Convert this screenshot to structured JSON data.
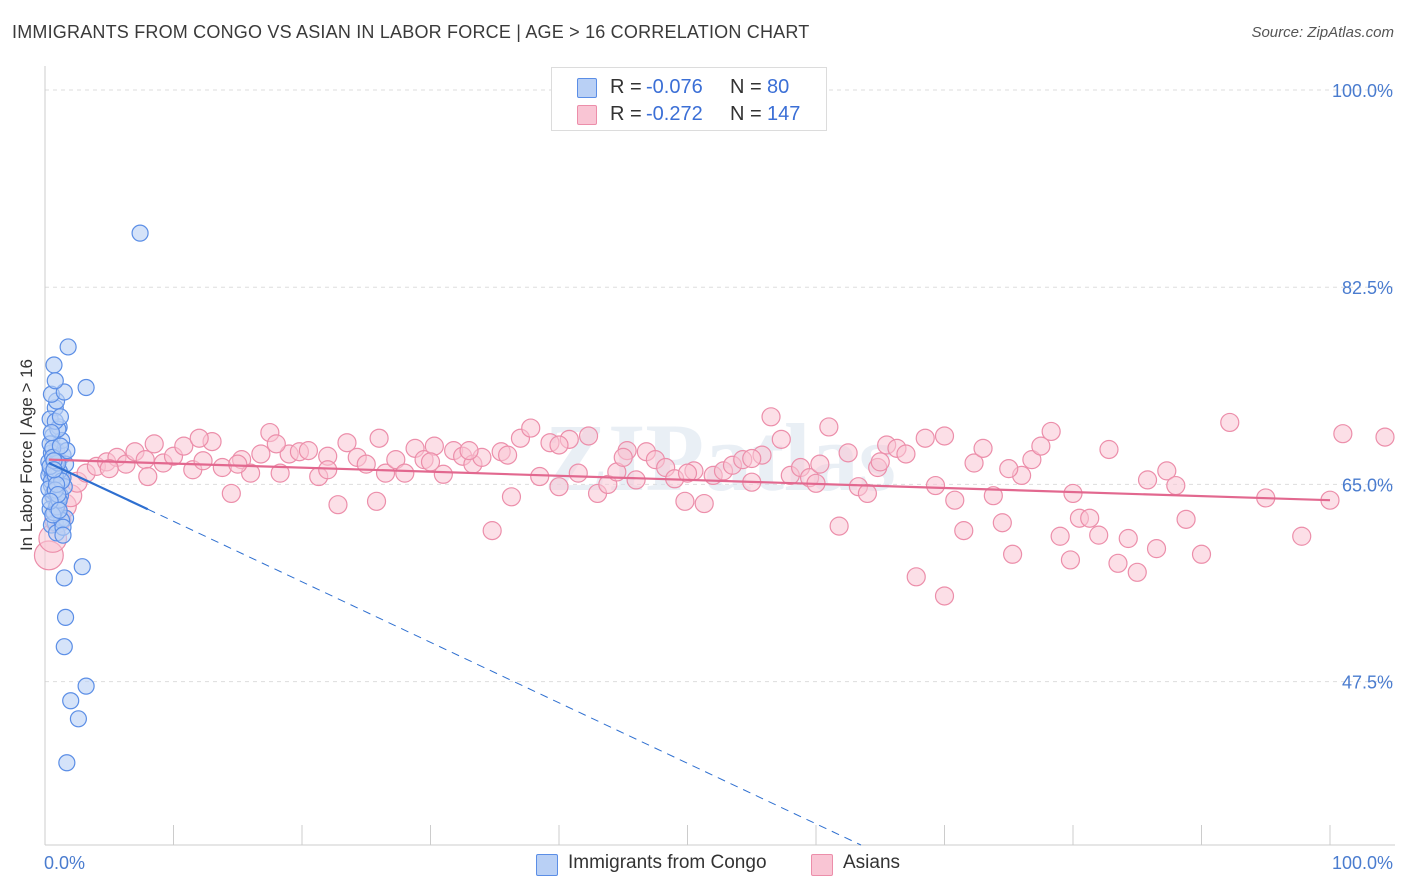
{
  "title": "IMMIGRANTS FROM CONGO VS ASIAN IN LABOR FORCE | AGE > 16 CORRELATION CHART",
  "source": "Source: ZipAtlas.com",
  "watermark": "ZIPatlas",
  "legend_top": [
    {
      "r_label": "R =",
      "r_value": "-0.076",
      "n_label": "N =",
      "n_value": "80"
    },
    {
      "r_label": "R =",
      "r_value": "-0.272",
      "n_label": "N =",
      "n_value": "147"
    }
  ],
  "legend_bottom": [
    "Immigrants from Congo",
    "Asians"
  ],
  "colors": {
    "congo_fill": "#b9d0f5",
    "congo_stroke": "#5b8ee6",
    "congo_line": "#2e6fd0",
    "asian_fill": "#f9c5d4",
    "asian_stroke": "#ec8eaa",
    "asian_line": "#e2688f",
    "tick_label": "#4a7ccf",
    "grid": "#dddddd"
  },
  "chart_data": {
    "type": "scatter",
    "title": "IMMIGRANTS FROM CONGO VS ASIAN IN LABOR FORCE | AGE > 16 CORRELATION CHART",
    "xlabel": "",
    "ylabel": "In Labor Force | Age > 16",
    "x_tick_labels": [
      "0.0%",
      "100.0%"
    ],
    "y_tick_labels": [
      "100.0%",
      "82.5%",
      "65.0%",
      "47.5%"
    ],
    "y_ticks": [
      100.0,
      82.5,
      65.0,
      47.5
    ],
    "xlim": [
      0,
      100
    ],
    "ylim": [
      33.0,
      101.6
    ],
    "grid": true,
    "series": [
      {
        "name": "Immigrants from Congo",
        "R": -0.076,
        "N": 80,
        "trend": {
          "x0": 0.3,
          "y0": 66.9,
          "x1": 8.0,
          "y1": 62.8,
          "dash_to_x": 63.5,
          "dash_to_y": 33.0
        },
        "points": [
          [
            0.4,
            66.2
          ],
          [
            0.6,
            65.5
          ],
          [
            0.8,
            66.8
          ],
          [
            1.0,
            67.3
          ],
          [
            0.5,
            64.9
          ],
          [
            0.9,
            68.0
          ],
          [
            1.2,
            66.0
          ],
          [
            0.7,
            63.8
          ],
          [
            1.4,
            67.6
          ],
          [
            0.3,
            65.8
          ],
          [
            0.6,
            69.3
          ],
          [
            1.1,
            70.1
          ],
          [
            0.8,
            71.8
          ],
          [
            0.4,
            70.8
          ],
          [
            1.3,
            68.9
          ],
          [
            0.9,
            72.4
          ],
          [
            0.5,
            73.0
          ],
          [
            0.7,
            75.6
          ],
          [
            1.5,
            73.2
          ],
          [
            0.8,
            74.2
          ],
          [
            0.6,
            64.0
          ],
          [
            1.0,
            63.3
          ],
          [
            0.4,
            62.8
          ],
          [
            1.2,
            62.0
          ],
          [
            0.8,
            61.6
          ],
          [
            1.6,
            62.0
          ],
          [
            0.5,
            61.4
          ],
          [
            0.9,
            60.7
          ],
          [
            1.3,
            61.8
          ],
          [
            0.7,
            62.5
          ],
          [
            0.3,
            67.0
          ],
          [
            0.5,
            67.8
          ],
          [
            0.9,
            66.5
          ],
          [
            1.6,
            66.8
          ],
          [
            1.1,
            65.1
          ],
          [
            0.6,
            66.0
          ],
          [
            0.4,
            68.6
          ],
          [
            1.0,
            69.9
          ],
          [
            1.7,
            68.0
          ],
          [
            0.8,
            70.6
          ],
          [
            0.5,
            65.3
          ],
          [
            1.4,
            65.6
          ],
          [
            0.7,
            64.3
          ],
          [
            1.1,
            66.2
          ],
          [
            0.9,
            67.0
          ],
          [
            0.3,
            64.6
          ],
          [
            1.2,
            64.0
          ],
          [
            0.6,
            68.2
          ],
          [
            1.5,
            64.8
          ],
          [
            0.8,
            65.8
          ],
          [
            0.4,
            66.6
          ],
          [
            1.0,
            66.9
          ],
          [
            0.6,
            67.4
          ],
          [
            1.3,
            65.3
          ],
          [
            0.9,
            63.0
          ],
          [
            0.5,
            69.6
          ],
          [
            1.2,
            68.4
          ],
          [
            0.7,
            67.1
          ],
          [
            1.1,
            63.6
          ],
          [
            0.8,
            64.5
          ],
          [
            1.8,
            77.2
          ],
          [
            3.2,
            73.6
          ],
          [
            7.4,
            87.3
          ],
          [
            1.4,
            61.2
          ],
          [
            2.9,
            57.7
          ],
          [
            1.5,
            56.7
          ],
          [
            1.6,
            53.2
          ],
          [
            1.5,
            50.6
          ],
          [
            3.2,
            47.1
          ],
          [
            2.0,
            45.8
          ],
          [
            2.6,
            44.2
          ],
          [
            1.7,
            40.3
          ],
          [
            0.9,
            65.0
          ],
          [
            1.2,
            71.0
          ],
          [
            0.6,
            62.3
          ],
          [
            1.0,
            64.1
          ],
          [
            0.4,
            63.5
          ],
          [
            1.4,
            60.5
          ],
          [
            0.7,
            66.3
          ],
          [
            1.1,
            62.7
          ]
        ]
      },
      {
        "name": "Asians",
        "R": -0.272,
        "N": 147,
        "trend": {
          "x0": 0.3,
          "y0": 67.2,
          "x1": 100.0,
          "y1": 63.6
        },
        "points": [
          [
            0.3,
            58.7
          ],
          [
            0.6,
            60.2
          ],
          [
            1.0,
            61.9
          ],
          [
            1.5,
            63.1
          ],
          [
            2.0,
            64.0
          ],
          [
            2.5,
            65.2
          ],
          [
            3.2,
            66.0
          ],
          [
            4.0,
            66.6
          ],
          [
            4.8,
            67.0
          ],
          [
            5.6,
            67.4
          ],
          [
            6.3,
            66.8
          ],
          [
            7.0,
            67.9
          ],
          [
            7.8,
            67.2
          ],
          [
            8.5,
            68.6
          ],
          [
            9.2,
            66.9
          ],
          [
            10.0,
            67.5
          ],
          [
            10.8,
            68.4
          ],
          [
            11.5,
            66.3
          ],
          [
            12.3,
            67.1
          ],
          [
            13.0,
            68.8
          ],
          [
            13.8,
            66.5
          ],
          [
            14.5,
            64.2
          ],
          [
            15.3,
            67.2
          ],
          [
            16.0,
            66.0
          ],
          [
            16.8,
            67.7
          ],
          [
            17.5,
            69.6
          ],
          [
            18.3,
            66.0
          ],
          [
            19.0,
            67.7
          ],
          [
            19.8,
            67.9
          ],
          [
            20.5,
            68.0
          ],
          [
            21.3,
            65.7
          ],
          [
            22.0,
            67.5
          ],
          [
            22.8,
            63.2
          ],
          [
            23.5,
            68.7
          ],
          [
            24.3,
            67.4
          ],
          [
            25.0,
            66.8
          ],
          [
            25.8,
            63.5
          ],
          [
            26.5,
            66.0
          ],
          [
            27.3,
            67.2
          ],
          [
            28.0,
            66.0
          ],
          [
            28.8,
            68.2
          ],
          [
            29.5,
            67.2
          ],
          [
            30.3,
            68.4
          ],
          [
            31.0,
            65.9
          ],
          [
            31.8,
            68.0
          ],
          [
            32.5,
            67.5
          ],
          [
            33.3,
            66.8
          ],
          [
            34.0,
            67.4
          ],
          [
            34.8,
            60.9
          ],
          [
            35.5,
            67.9
          ],
          [
            36.3,
            63.9
          ],
          [
            37.0,
            69.1
          ],
          [
            37.8,
            70.0
          ],
          [
            38.5,
            65.7
          ],
          [
            39.3,
            68.7
          ],
          [
            40.0,
            64.8
          ],
          [
            40.8,
            69.0
          ],
          [
            41.5,
            66.0
          ],
          [
            42.3,
            69.3
          ],
          [
            43.0,
            64.2
          ],
          [
            43.8,
            65.0
          ],
          [
            44.5,
            66.1
          ],
          [
            45.3,
            68.0
          ],
          [
            46.0,
            65.4
          ],
          [
            46.8,
            67.9
          ],
          [
            47.5,
            67.2
          ],
          [
            48.3,
            66.5
          ],
          [
            49.0,
            65.5
          ],
          [
            49.8,
            63.5
          ],
          [
            50.5,
            66.2
          ],
          [
            51.3,
            63.3
          ],
          [
            52.0,
            65.8
          ],
          [
            52.8,
            66.2
          ],
          [
            53.5,
            66.7
          ],
          [
            54.3,
            67.2
          ],
          [
            55.0,
            65.2
          ],
          [
            55.8,
            67.6
          ],
          [
            56.5,
            71.0
          ],
          [
            57.3,
            69.0
          ],
          [
            58.0,
            65.8
          ],
          [
            58.8,
            66.5
          ],
          [
            59.5,
            65.6
          ],
          [
            60.3,
            66.8
          ],
          [
            61.0,
            70.1
          ],
          [
            61.8,
            61.3
          ],
          [
            62.5,
            67.8
          ],
          [
            63.3,
            64.8
          ],
          [
            64.0,
            64.2
          ],
          [
            64.8,
            66.5
          ],
          [
            65.5,
            68.5
          ],
          [
            66.3,
            68.2
          ],
          [
            67.0,
            67.7
          ],
          [
            67.8,
            56.8
          ],
          [
            68.5,
            69.1
          ],
          [
            69.3,
            64.9
          ],
          [
            70.0,
            55.1
          ],
          [
            70.8,
            63.6
          ],
          [
            71.5,
            60.9
          ],
          [
            72.3,
            66.9
          ],
          [
            73.0,
            68.2
          ],
          [
            73.8,
            64.0
          ],
          [
            74.5,
            61.6
          ],
          [
            75.3,
            58.8
          ],
          [
            76.0,
            65.8
          ],
          [
            76.8,
            67.2
          ],
          [
            77.5,
            68.4
          ],
          [
            78.3,
            69.7
          ],
          [
            79.0,
            60.4
          ],
          [
            79.8,
            58.3
          ],
          [
            80.5,
            62.0
          ],
          [
            81.3,
            62.0
          ],
          [
            82.0,
            60.5
          ],
          [
            82.8,
            68.1
          ],
          [
            83.5,
            58.0
          ],
          [
            84.3,
            60.2
          ],
          [
            85.0,
            57.2
          ],
          [
            85.8,
            65.4
          ],
          [
            86.5,
            59.3
          ],
          [
            87.3,
            66.2
          ],
          [
            88.0,
            64.9
          ],
          [
            88.8,
            61.9
          ],
          [
            90.0,
            58.8
          ],
          [
            92.2,
            70.5
          ],
          [
            95.0,
            63.8
          ],
          [
            97.8,
            60.4
          ],
          [
            101.0,
            69.5
          ],
          [
            105.0,
            69.2
          ],
          [
            100.0,
            63.6
          ],
          [
            5.0,
            66.4
          ],
          [
            8.0,
            65.7
          ],
          [
            12.0,
            69.1
          ],
          [
            15.0,
            66.8
          ],
          [
            18.0,
            68.6
          ],
          [
            22.0,
            66.3
          ],
          [
            26.0,
            69.1
          ],
          [
            30.0,
            67.0
          ],
          [
            33.0,
            68.0
          ],
          [
            36.0,
            67.6
          ],
          [
            40.0,
            68.5
          ],
          [
            45.0,
            67.4
          ],
          [
            50.0,
            66.0
          ],
          [
            55.0,
            67.3
          ],
          [
            60.0,
            65.1
          ],
          [
            65.0,
            67.0
          ],
          [
            70.0,
            69.3
          ],
          [
            75.0,
            66.4
          ],
          [
            80.0,
            64.2
          ]
        ]
      }
    ]
  }
}
